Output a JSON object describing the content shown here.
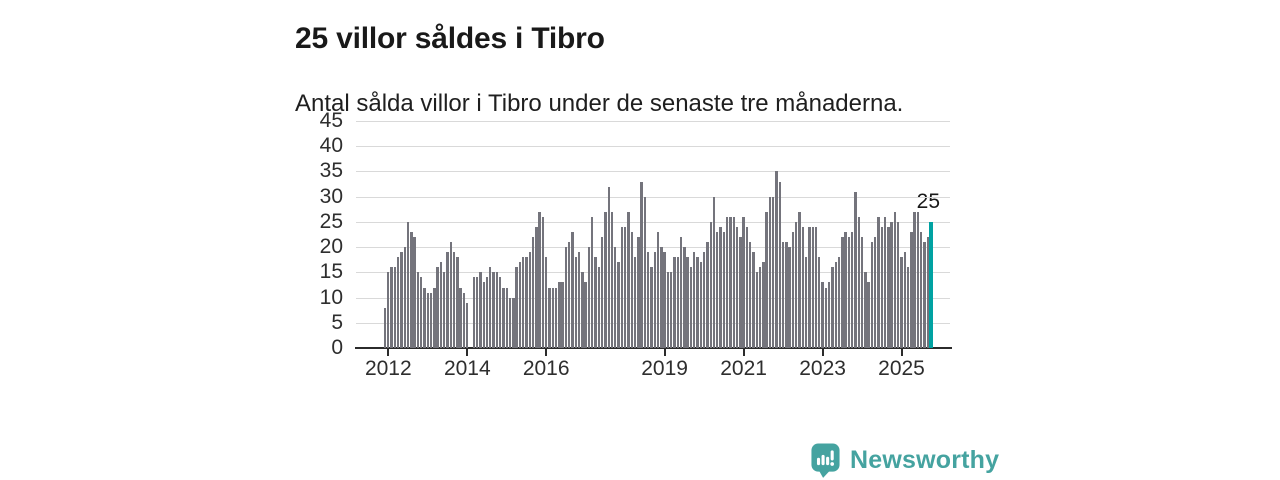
{
  "header": {
    "title": "25 villor såldes i Tibro",
    "subtitle": "Antal sålda villor i Tibro under de senaste tre månaderna."
  },
  "chart_data": {
    "type": "bar",
    "title": "25 villor såldes i Tibro",
    "subtitle": "Antal sålda villor i Tibro under de senaste tre månaderna.",
    "xlabel": "",
    "ylabel": "",
    "ylim": [
      0,
      45
    ],
    "y_ticks": [
      0,
      5,
      10,
      15,
      20,
      25,
      30,
      35,
      40,
      45
    ],
    "x_tick_labels": [
      "2012",
      "2014",
      "2016",
      "2019",
      "2021",
      "2023",
      "2025"
    ],
    "x_tick_bar_indices": [
      1,
      25,
      49,
      85,
      109,
      133,
      157
    ],
    "grid": true,
    "legend": "none",
    "bar_color": "#74747c",
    "highlight_color": "#00a2a2",
    "highlight_last": {
      "value": 25,
      "label": "25"
    },
    "values": [
      8,
      15,
      16,
      16,
      18,
      19,
      20,
      25,
      23,
      22,
      15,
      14,
      12,
      11,
      11,
      12,
      16,
      17,
      15,
      19,
      21,
      19,
      18,
      12,
      11,
      9,
      0,
      14,
      14,
      15,
      13,
      14,
      16,
      15,
      15,
      14,
      12,
      12,
      10,
      10,
      16,
      17,
      18,
      18,
      19,
      22,
      24,
      27,
      26,
      18,
      12,
      12,
      12,
      13,
      13,
      20,
      21,
      23,
      18,
      19,
      15,
      13,
      20,
      26,
      18,
      16,
      22,
      27,
      32,
      27,
      20,
      17,
      24,
      24,
      27,
      23,
      18,
      22,
      33,
      30,
      19,
      16,
      19,
      23,
      20,
      19,
      15,
      15,
      18,
      18,
      22,
      20,
      18,
      16,
      19,
      18,
      17,
      19,
      21,
      25,
      30,
      23,
      24,
      23,
      26,
      26,
      26,
      24,
      22,
      26,
      24,
      21,
      19,
      15,
      16,
      17,
      27,
      30,
      30,
      35,
      33,
      21,
      21,
      20,
      23,
      25,
      27,
      24,
      18,
      24,
      24,
      24,
      18,
      13,
      12,
      13,
      16,
      17,
      18,
      22,
      23,
      22,
      23,
      31,
      26,
      22,
      15,
      13,
      21,
      22,
      26,
      24,
      26,
      24,
      25,
      27,
      25,
      18,
      19,
      16,
      23,
      27,
      27,
      23,
      21,
      22,
      25
    ]
  },
  "footer": {
    "brand": "Newsworthy",
    "brand_color": "#45a3a0",
    "logo_icon": "newsworthy-speech-bubble-chart-icon"
  },
  "colors": {
    "accent_teal": "#00a2a2",
    "bar_gray": "#74747c",
    "gridline": "#d9d9d9",
    "axis": "#2b2b2b",
    "text": "#191919"
  }
}
